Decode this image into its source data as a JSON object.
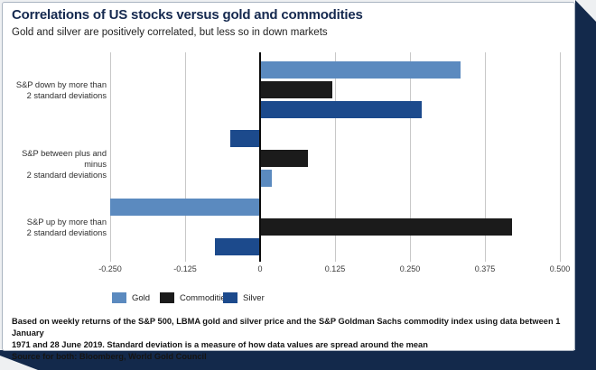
{
  "header": {
    "title": "Correlations of US stocks versus gold and commodities",
    "subtitle": "Gold and silver are positively correlated, but less so in down markets"
  },
  "chart_data": {
    "type": "bar",
    "orientation": "horizontal",
    "title": "Correlations of US stocks versus gold and commodities",
    "xlabel": "",
    "ylabel": "",
    "xlim": [
      -0.25,
      0.5
    ],
    "x_ticks": [
      -0.25,
      -0.125,
      0,
      0.125,
      0.25,
      0.375,
      0.5
    ],
    "x_tick_labels": [
      "-0.250",
      "-0.125",
      "0",
      "0.125",
      "0.250",
      "0.375",
      "0.500"
    ],
    "grid": "vertical",
    "legend_position": "bottom-left",
    "groups": [
      {
        "label_lines": [
          "S&P down by more than",
          "2 standard deviations"
        ],
        "bars": [
          {
            "series": "Gold",
            "value": 0.335
          },
          {
            "series": "Commodities",
            "value": 0.12
          },
          {
            "series": "Silver",
            "value": 0.27
          }
        ]
      },
      {
        "label_lines": [
          "S&P between plus and minus",
          "2 standard deviations"
        ],
        "bars": [
          {
            "series": "Silver",
            "value": -0.05
          },
          {
            "series": "Commodities",
            "value": 0.08
          },
          {
            "series": "Gold",
            "value": 0.02
          }
        ]
      },
      {
        "label_lines": [
          "S&P up by more than",
          "2 standard deviations"
        ],
        "bars": [
          {
            "series": "Gold",
            "value": -0.25
          },
          {
            "series": "Commodities",
            "value": 0.42
          },
          {
            "series": "Silver",
            "value": -0.075
          }
        ]
      }
    ],
    "legend": [
      {
        "label": "Gold",
        "color": "#5b8abf"
      },
      {
        "label": "Commodities",
        "color": "#1b1b1b"
      },
      {
        "label": "Silver",
        "color": "#1c4a8c"
      }
    ]
  },
  "footnote": {
    "lines": [
      "Based on weekly returns of the S&P 500, LBMA gold and silver price and the S&P Goldman Sachs commodity index using data between 1 January",
      "1971 and 28 June 2019. Standard deviation is a measure of how data values are spread around the mean"
    ],
    "source": "Source for both: Bloomberg, World Gold Council"
  },
  "colors": {
    "gold": "#5b8abf",
    "commodities": "#1b1b1b",
    "silver": "#1c4a8c",
    "frame_navy": "#13294b",
    "title_navy": "#15294f",
    "gridline": "#c8c8c8"
  }
}
